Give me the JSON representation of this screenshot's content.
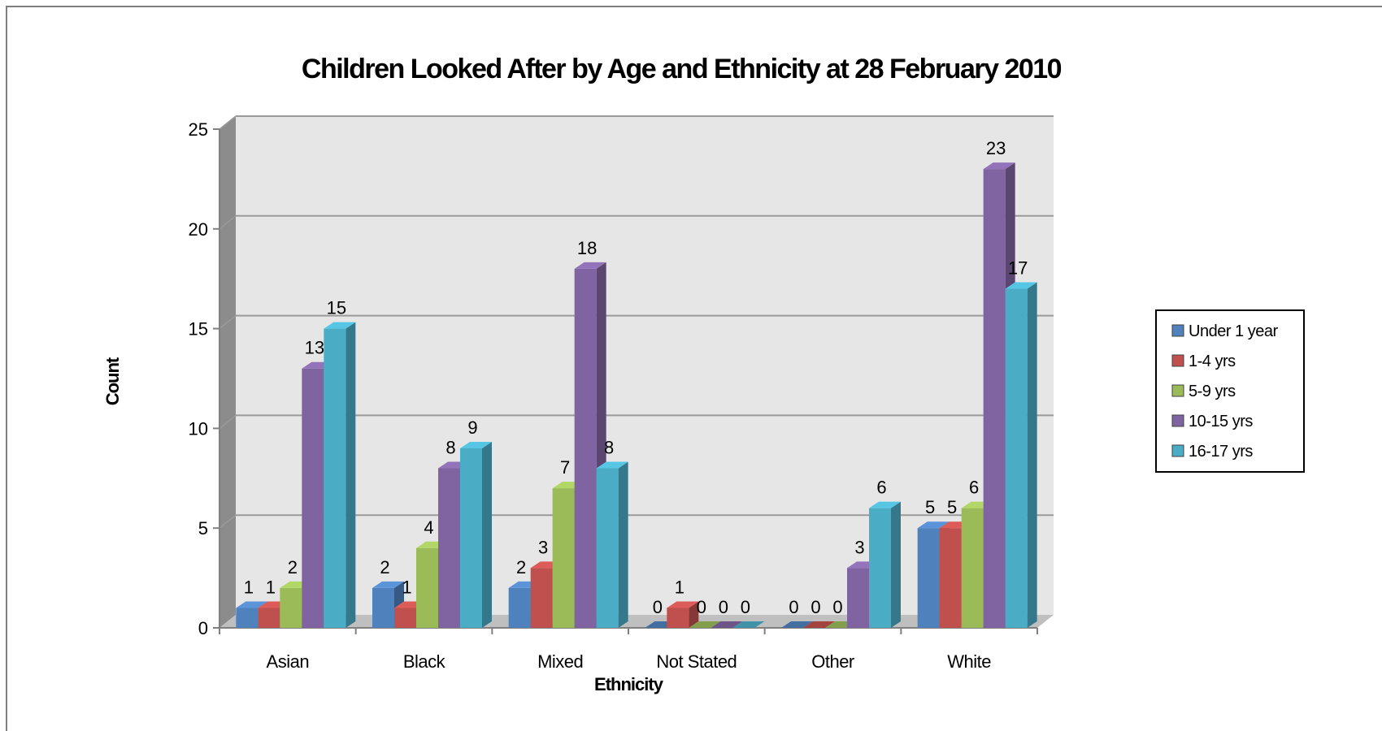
{
  "chart_data": {
    "type": "bar",
    "title": "Children Looked After by Age and Ethnicity at 28 February 2010",
    "xlabel": "Ethnicity",
    "ylabel": "Count",
    "ylim": [
      0,
      25
    ],
    "yticks": [
      0,
      5,
      10,
      15,
      20,
      25
    ],
    "grid": true,
    "legend_position": "right",
    "categories": [
      "Asian",
      "Black",
      "Mixed",
      "Not Stated",
      "Other",
      "White"
    ],
    "series": [
      {
        "name": "Under 1 year",
        "color": "#4F81BD",
        "values": [
          1,
          2,
          2,
          0,
          0,
          5
        ]
      },
      {
        "name": "1-4 yrs",
        "color": "#C0504D",
        "values": [
          1,
          1,
          3,
          1,
          0,
          5
        ]
      },
      {
        "name": "5-9 yrs",
        "color": "#9BBB59",
        "values": [
          2,
          4,
          7,
          0,
          0,
          6
        ]
      },
      {
        "name": "10-15 yrs",
        "color": "#8064A2",
        "values": [
          13,
          8,
          18,
          0,
          3,
          23
        ]
      },
      {
        "name": "16-17 yrs",
        "color": "#4BACC6",
        "values": [
          15,
          9,
          8,
          0,
          6,
          17
        ]
      }
    ]
  }
}
